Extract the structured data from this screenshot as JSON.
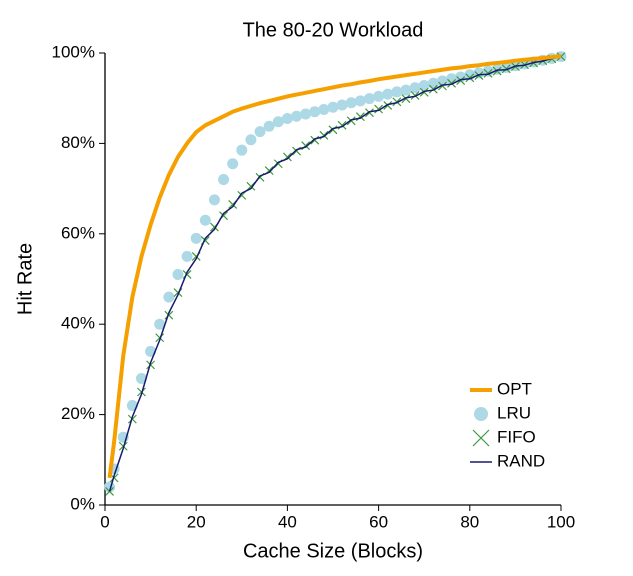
{
  "chart_data": {
    "type": "line",
    "title": "The 80-20 Workload",
    "x_label": "Cache Size (Blocks)",
    "y_label": "Hit Rate",
    "x": [
      1,
      2,
      4,
      6,
      8,
      10,
      12,
      14,
      16,
      18,
      20,
      22,
      24,
      26,
      28,
      30,
      32,
      34,
      36,
      38,
      40,
      42,
      44,
      46,
      48,
      50,
      52,
      54,
      56,
      58,
      60,
      62,
      64,
      66,
      68,
      70,
      72,
      74,
      76,
      78,
      80,
      82,
      84,
      86,
      88,
      90,
      92,
      94,
      96,
      98,
      100
    ],
    "series": [
      {
        "name": "OPT",
        "color": "#f5a000",
        "style": "line",
        "values": [
          6,
          14,
          33,
          46,
          55,
          62,
          68,
          73,
          77,
          80,
          82.5,
          84,
          85,
          86,
          87,
          87.7,
          88.3,
          88.9,
          89.4,
          89.9,
          90.4,
          90.8,
          91.2,
          91.6,
          92,
          92.4,
          92.8,
          93.1,
          93.5,
          93.8,
          94.2,
          94.5,
          94.8,
          95.1,
          95.4,
          95.7,
          96,
          96.3,
          96.6,
          96.8,
          97.1,
          97.3,
          97.6,
          97.8,
          98,
          98.3,
          98.5,
          98.7,
          98.9,
          99.1,
          99.3
        ]
      },
      {
        "name": "LRU",
        "color": "#add8e6",
        "style": "dots",
        "values": [
          4,
          8,
          15,
          22,
          28,
          34,
          40,
          46,
          51,
          55,
          59,
          63,
          67.5,
          72,
          75.5,
          78.5,
          80.8,
          82.6,
          83.8,
          84.8,
          85.5,
          86,
          86.5,
          87,
          87.5,
          88,
          88.5,
          89,
          89.4,
          89.9,
          90.4,
          90.9,
          91.4,
          91.8,
          92.3,
          92.8,
          93.3,
          93.8,
          94.3,
          94.7,
          95.2,
          95.6,
          96,
          96.4,
          96.8,
          97.2,
          97.6,
          98,
          98.4,
          98.8,
          99.2
        ]
      },
      {
        "name": "FIFO",
        "color": "#3a9a3a",
        "style": "cross",
        "values": [
          3,
          6,
          13,
          19,
          25,
          31,
          37,
          42,
          47,
          51,
          55,
          58.5,
          61.5,
          64,
          66.5,
          68.5,
          70.5,
          72.5,
          74,
          75.5,
          77,
          78.3,
          79.5,
          80.7,
          81.8,
          83,
          84,
          85,
          85.9,
          86.8,
          87.6,
          88.4,
          89.2,
          89.9,
          90.6,
          91.3,
          92,
          92.7,
          93.3,
          93.9,
          94.5,
          95,
          95.5,
          96,
          96.5,
          97,
          97.4,
          97.8,
          98.3,
          98.7,
          99.2
        ]
      },
      {
        "name": "RAND",
        "color": "#1a1a6e",
        "style": "line",
        "values": [
          3,
          6.5,
          12.5,
          19.5,
          24.5,
          31.5,
          36.5,
          42.5,
          46.5,
          51.5,
          54.5,
          59,
          61,
          64.5,
          66,
          69,
          70,
          72.8,
          73.6,
          75.8,
          76.6,
          78.6,
          79.2,
          81,
          81.5,
          83.3,
          83.7,
          85.2,
          85.6,
          87,
          87.3,
          88.6,
          89,
          90.1,
          90.4,
          91.5,
          91.8,
          92.9,
          93.1,
          94.1,
          94.3,
          95.2,
          95.3,
          96.2,
          96.3,
          97.1,
          97.3,
          97.9,
          98.2,
          98.8,
          99.1
        ]
      }
    ],
    "xlim": [
      0,
      100
    ],
    "xticks": [
      0,
      20,
      40,
      60,
      80,
      100
    ],
    "ylim": [
      0,
      100
    ],
    "yticks": [
      {
        "value": 0,
        "label": "0%"
      },
      {
        "value": 20,
        "label": "20%"
      },
      {
        "value": 40,
        "label": "40%"
      },
      {
        "value": 60,
        "label": "60%"
      },
      {
        "value": 80,
        "label": "80%"
      },
      {
        "value": 100,
        "label": "100%"
      }
    ],
    "legend": "lower right",
    "grid": false
  }
}
